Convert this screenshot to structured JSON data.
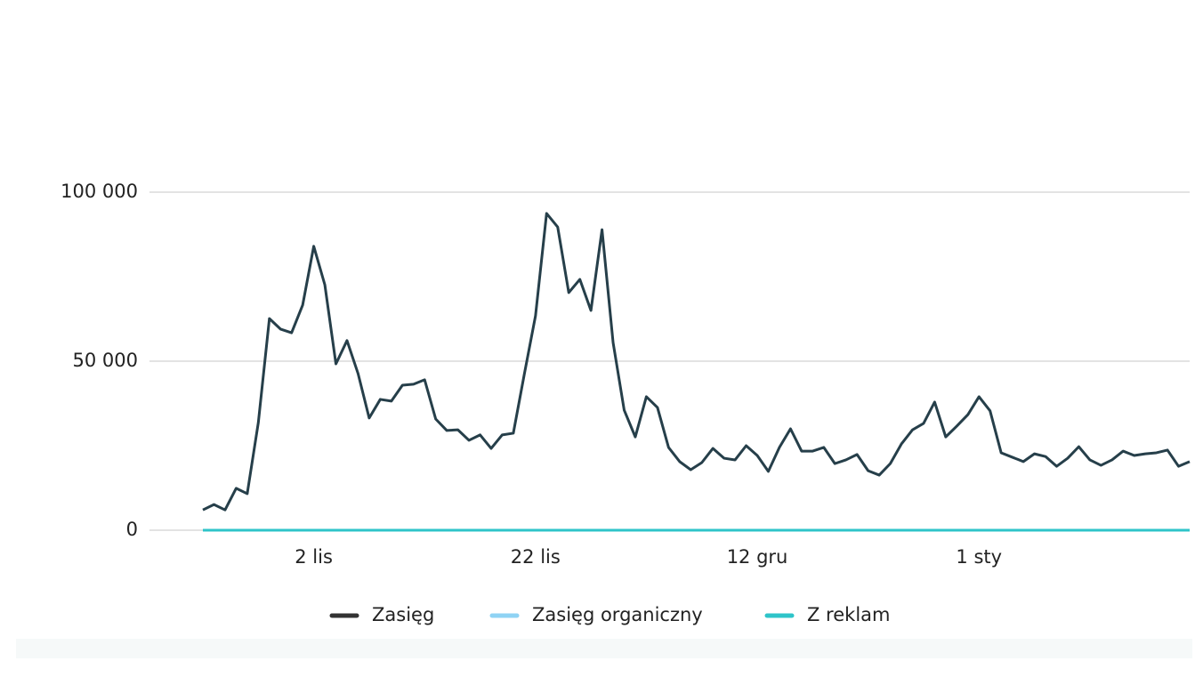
{
  "chart_data": {
    "type": "line",
    "categories": [
      null,
      null,
      null,
      null,
      null,
      null,
      null,
      null,
      null,
      null,
      "2 lis",
      null,
      null,
      null,
      null,
      null,
      null,
      null,
      null,
      null,
      null,
      null,
      null,
      null,
      null,
      null,
      null,
      null,
      null,
      null,
      "22 lis",
      null,
      null,
      null,
      null,
      null,
      null,
      null,
      null,
      null,
      null,
      null,
      null,
      null,
      null,
      null,
      null,
      null,
      null,
      null,
      "12 gru",
      null,
      null,
      null,
      null,
      null,
      null,
      null,
      null,
      null,
      null,
      null,
      null,
      null,
      null,
      null,
      null,
      null,
      null,
      null,
      "1 sty",
      null,
      null,
      null,
      null,
      null,
      null,
      null,
      null,
      null,
      null,
      null,
      null,
      null,
      null,
      null,
      null,
      null,
      null,
      null
    ],
    "series": [
      {
        "name": "Zasięg",
        "color": "#263f4a",
        "values": [
          6000,
          7600,
          6000,
          12400,
          10800,
          31800,
          62600,
          59500,
          58400,
          66600,
          84000,
          72600,
          49200,
          56100,
          46300,
          33200,
          38700,
          38200,
          42900,
          43200,
          44500,
          32900,
          29500,
          29700,
          26600,
          28200,
          24200,
          28200,
          28700,
          46300,
          63400,
          93700,
          89700,
          70300,
          74200,
          65000,
          88900,
          55500,
          35500,
          27600,
          39500,
          36300,
          24500,
          20300,
          17900,
          20000,
          24200,
          21300,
          20800,
          25000,
          22100,
          17400,
          24500,
          30000,
          23400,
          23400,
          24500,
          19700,
          20800,
          22400,
          17600,
          16300,
          19700,
          25500,
          29700,
          31600,
          37900,
          27600,
          30800,
          34200,
          39500,
          35300,
          22900,
          21600,
          20300,
          22600,
          21800,
          18900,
          21300,
          24700,
          20800,
          19200,
          20800,
          23400,
          22100,
          22600,
          22900,
          23700,
          18900,
          20300
        ]
      },
      {
        "name": "Zasięg organiczny",
        "color": "#8fd3f4",
        "values": [
          0,
          0,
          0,
          0,
          0,
          0,
          0,
          0,
          0,
          0,
          0,
          0,
          0,
          0,
          0,
          0,
          0,
          0,
          0,
          0,
          0,
          0,
          0,
          0,
          0,
          0,
          0,
          0,
          0,
          0,
          0,
          0,
          0,
          0,
          0,
          0,
          0,
          0,
          0,
          0,
          0,
          0,
          0,
          0,
          0,
          0,
          0,
          0,
          0,
          0,
          0,
          0,
          0,
          0,
          0,
          0,
          0,
          0,
          0,
          0,
          0,
          0,
          0,
          0,
          0,
          0,
          0,
          0,
          0,
          0,
          0,
          0,
          0,
          0,
          0,
          0,
          0,
          0,
          0,
          0,
          0,
          0,
          0,
          0,
          0,
          0,
          0,
          0,
          0,
          0
        ]
      },
      {
        "name": "Z reklam",
        "color": "#2ec4c9",
        "values": [
          0,
          0,
          0,
          0,
          0,
          0,
          0,
          0,
          0,
          0,
          0,
          0,
          0,
          0,
          0,
          0,
          0,
          0,
          0,
          0,
          0,
          0,
          0,
          0,
          0,
          0,
          0,
          0,
          0,
          0,
          0,
          0,
          0,
          0,
          0,
          0,
          0,
          0,
          0,
          0,
          0,
          0,
          0,
          0,
          0,
          0,
          0,
          0,
          0,
          0,
          0,
          0,
          0,
          0,
          0,
          0,
          0,
          0,
          0,
          0,
          0,
          0,
          0,
          0,
          0,
          0,
          0,
          0,
          0,
          0,
          0,
          0,
          0,
          0,
          0,
          0,
          0,
          0,
          0,
          0,
          0,
          0,
          0,
          0,
          0,
          0,
          0,
          0,
          0,
          0
        ]
      }
    ],
    "ylim": [
      0,
      100000
    ],
    "yticks": [
      0,
      {
        "value": 50000,
        "label": "50 000"
      },
      {
        "value": 100000,
        "label": "100 000"
      }
    ],
    "grid": true
  }
}
